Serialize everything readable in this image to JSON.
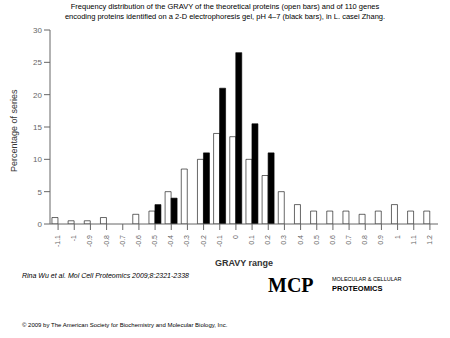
{
  "chart_data": {
    "type": "bar",
    "title": "Frequency distribution of the GRAVY of the theoretical proteins (open bars) and of 110 genes\nencoding proteins identified on a 2-D electrophoresis gel, pH 4–7 (black bars), in L. casei Zhang.",
    "x_label": "GRAVY range",
    "y_label": "Percentage of series",
    "categories": [
      "-1.1",
      "-1",
      "-0.9",
      "-0.8",
      "-0.7",
      "-0.6",
      "-0.5",
      "-0.4",
      "-0.3",
      "-0.2",
      "-0.1",
      "0",
      "0.1",
      "0.2",
      "0.3",
      "0.4",
      "0.5",
      "0.6",
      "0.7",
      "0.8",
      "0.9",
      "1",
      "1.1",
      "1.2"
    ],
    "series": [
      {
        "color": "#ffffff",
        "values": [
          1,
          0.5,
          0.5,
          1,
          0,
          1.5,
          2,
          5,
          8.5,
          10,
          14,
          13.5,
          10,
          7.5,
          5,
          3,
          2,
          2,
          2,
          1.5,
          2,
          3,
          2,
          2
        ]
      },
      {
        "color": "#000000",
        "values": [
          0,
          0,
          0,
          0,
          0,
          0,
          3,
          4,
          0,
          11,
          21,
          26.5,
          15.5,
          11,
          0,
          0,
          0,
          0,
          0,
          0,
          0,
          0,
          0,
          0
        ]
      }
    ],
    "ylim": [
      0,
      30
    ],
    "yticks": [
      0,
      5,
      10,
      15,
      20,
      25,
      30
    ],
    "grid": false,
    "annotations": [
      "Rina Wu et al. Mol Cell Proteomics 2009;8:2321-2338",
      "© 2009 by The American Society for Biochemistry and Molecular Biology, Inc.",
      "MCP",
      "MOLECULAR & CELLULAR",
      "PROTEOMICS"
    ]
  }
}
